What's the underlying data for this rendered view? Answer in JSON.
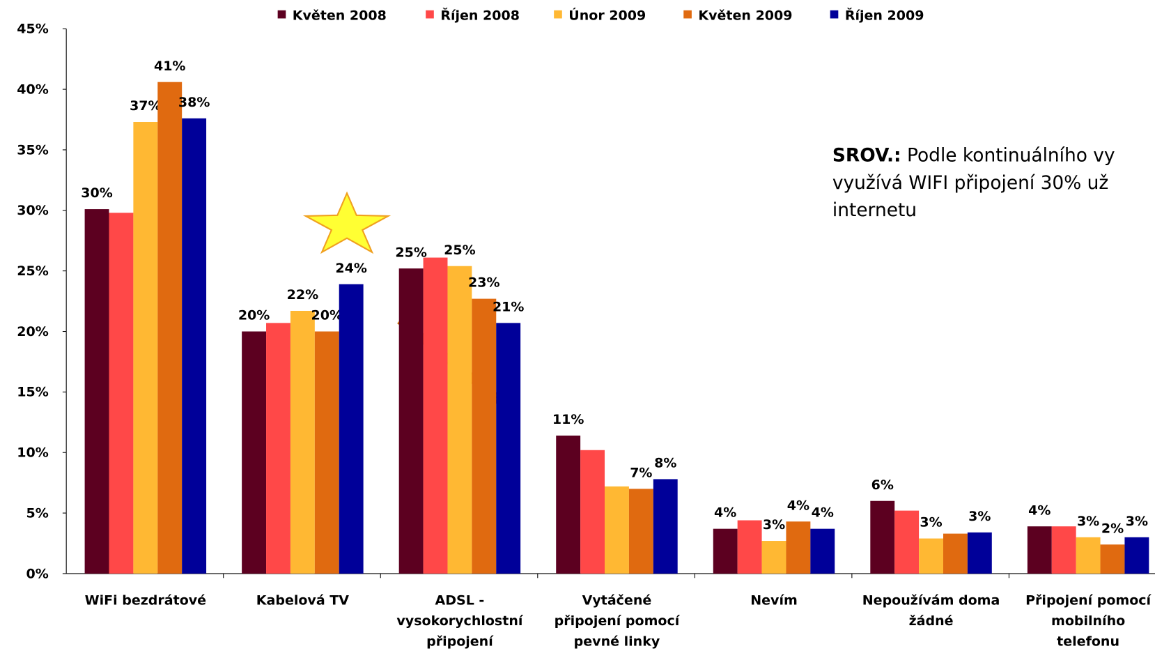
{
  "chart_data": {
    "type": "bar",
    "categories": [
      "WiFi bezdrátové",
      "Kabelová TV",
      "ADSL -\nvysokorychlostní\npřipojení",
      "Vytáčené\npřipojení pomocí\npevné linky",
      "Nevím",
      "Nepoužívám doma\nžádné",
      "Připojení pomocí\nmobilního\ntelefonu"
    ],
    "series": [
      {
        "name": "Květen 2008",
        "color": "#5c0020",
        "values": [
          30.1,
          20.0,
          25.2,
          11.4,
          3.7,
          6.0,
          3.9
        ],
        "value_labels": [
          "30%",
          "20%",
          "25%",
          "11%",
          "4%",
          "6%",
          "4%"
        ]
      },
      {
        "name": "Říjen 2008",
        "color": "#ff4848",
        "values": [
          29.8,
          20.7,
          26.1,
          10.2,
          4.4,
          5.2,
          3.9
        ],
        "value_labels": [
          null,
          null,
          null,
          null,
          null,
          null,
          null
        ]
      },
      {
        "name": "Únor 2009",
        "color": "#ffb833",
        "values": [
          37.3,
          21.7,
          25.4,
          7.2,
          2.7,
          2.9,
          3.0
        ],
        "value_labels": [
          "37%",
          "22%",
          "25%",
          null,
          "3%",
          "3%",
          "3%"
        ]
      },
      {
        "name": "Květen 2009",
        "color": "#e06a10",
        "values": [
          40.6,
          20.0,
          22.7,
          7.0,
          4.3,
          3.3,
          2.4
        ],
        "value_labels": [
          "41%",
          "20%",
          "23%",
          "7%",
          "4%",
          null,
          "2%"
        ]
      },
      {
        "name": "Říjen 2009",
        "color": "#000099",
        "values": [
          37.6,
          23.9,
          20.7,
          7.8,
          3.7,
          3.4,
          3.0
        ],
        "value_labels": [
          "38%",
          "24%",
          "21%",
          "8%",
          "4%",
          "3%",
          "3%"
        ]
      }
    ],
    "ylim": [
      0,
      45
    ],
    "yticks": [
      {
        "value": 0,
        "label": "0%"
      },
      {
        "value": 5,
        "label": "5%"
      },
      {
        "value": 10,
        "label": "10%"
      },
      {
        "value": 15,
        "label": "15%"
      },
      {
        "value": 20,
        "label": "20%"
      },
      {
        "value": 25,
        "label": "25%"
      },
      {
        "value": 30,
        "label": "30%"
      },
      {
        "value": 35,
        "label": "35%"
      },
      {
        "value": 40,
        "label": "40%"
      },
      {
        "value": 45,
        "label": "45%"
      }
    ],
    "grid": false,
    "legend": "top",
    "annotation": {
      "bold": "SROV.:",
      "lines": [
        " Podle kontinuálního vy",
        "využívá WIFI připojení 30% už",
        "internetu"
      ]
    }
  }
}
